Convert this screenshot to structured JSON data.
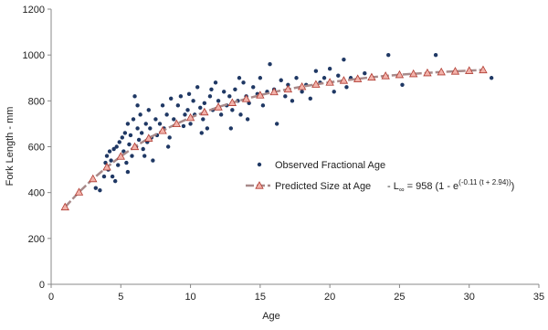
{
  "chart_data": {
    "type": "scatter",
    "xlabel": "Age",
    "ylabel": "Fork Length - mm",
    "xlim": [
      0,
      35
    ],
    "ylim": [
      0,
      1200
    ],
    "xticks": [
      0,
      5,
      10,
      15,
      20,
      25,
      30,
      35
    ],
    "yticks": [
      0,
      200,
      400,
      600,
      800,
      1000,
      1200
    ],
    "grid": false,
    "series": [
      {
        "name": "Observed Fractional Age",
        "color": "#1f3864",
        "kind": "scatter",
        "x": [
          3.2,
          3.5,
          3.8,
          3.9,
          4.0,
          4.1,
          4.2,
          4.3,
          4.5,
          4.6,
          4.7,
          4.8,
          4.9,
          5.0,
          5.1,
          5.2,
          5.3,
          5.4,
          5.5,
          5.6,
          5.7,
          5.8,
          5.9,
          6.0,
          6.1,
          6.2,
          6.3,
          6.4,
          6.5,
          6.7,
          6.8,
          6.9,
          7.0,
          7.1,
          7.3,
          7.5,
          7.6,
          7.8,
          8.0,
          8.1,
          8.3,
          8.5,
          8.6,
          8.8,
          9.0,
          9.1,
          9.3,
          9.5,
          9.6,
          9.8,
          10.0,
          10.2,
          10.3,
          10.5,
          10.7,
          10.9,
          11.0,
          11.2,
          11.4,
          11.6,
          11.8,
          12.0,
          12.2,
          12.4,
          12.6,
          12.8,
          13.0,
          13.2,
          13.4,
          13.6,
          13.8,
          14.0,
          14.2,
          14.5,
          14.8,
          15.0,
          15.2,
          15.5,
          15.7,
          16.0,
          16.2,
          16.5,
          16.8,
          17.0,
          17.3,
          17.6,
          18.0,
          18.3,
          18.6,
          19.0,
          19.3,
          19.6,
          20.0,
          20.3,
          20.6,
          21.0,
          21.2,
          21.5,
          22.5,
          24.2,
          25.2,
          27.6,
          31.6,
          8.4,
          7.2,
          6.6,
          5.5,
          4.4,
          10.8,
          12.9,
          14.1,
          9.9,
          11.5,
          13.5,
          6.2
        ],
        "values": [
          420,
          410,
          470,
          530,
          560,
          500,
          580,
          540,
          590,
          450,
          600,
          520,
          620,
          560,
          640,
          580,
          660,
          530,
          700,
          610,
          650,
          560,
          720,
          820,
          600,
          680,
          630,
          740,
          660,
          560,
          700,
          620,
          760,
          680,
          540,
          720,
          650,
          700,
          780,
          680,
          740,
          640,
          810,
          720,
          700,
          780,
          820,
          690,
          740,
          760,
          700,
          800,
          740,
          860,
          770,
          720,
          790,
          680,
          820,
          760,
          880,
          800,
          740,
          840,
          780,
          820,
          760,
          850,
          800,
          740,
          880,
          820,
          790,
          860,
          830,
          900,
          780,
          840,
          960,
          850,
          700,
          890,
          820,
          870,
          800,
          900,
          840,
          870,
          810,
          930,
          880,
          900,
          940,
          840,
          910,
          980,
          860,
          900,
          920,
          1000,
          870,
          1000,
          900,
          600,
          640,
          590,
          490,
          470,
          660,
          680,
          720,
          830,
          850,
          900,
          780
        ]
      },
      {
        "name": "Predicted Size at Age",
        "color": "#a88a8a",
        "marker_fill": "#f2b2aa",
        "marker_edge": "#b03a30",
        "kind": "line",
        "x": [
          1,
          2,
          3,
          4,
          5,
          6,
          7,
          8,
          9,
          10,
          11,
          12,
          13,
          14,
          15,
          16,
          17,
          18,
          19,
          20,
          21,
          22,
          23,
          24,
          25,
          26,
          27,
          28,
          29,
          30,
          31
        ],
        "values": [
          337,
          402,
          460,
          511,
          558,
          600,
          637,
          670,
          700,
          727,
          751,
          773,
          792,
          809,
          825,
          839,
          851,
          862,
          872,
          881,
          889,
          896,
          903,
          909,
          914,
          918,
          922,
          926,
          929,
          932,
          935
        ]
      }
    ],
    "equation": {
      "lead": "- L",
      "subscript": "∞",
      "main": " = 958 (1 - e",
      "superscript": "(-0.11 (t + 2.94))",
      "tail": ")"
    }
  }
}
